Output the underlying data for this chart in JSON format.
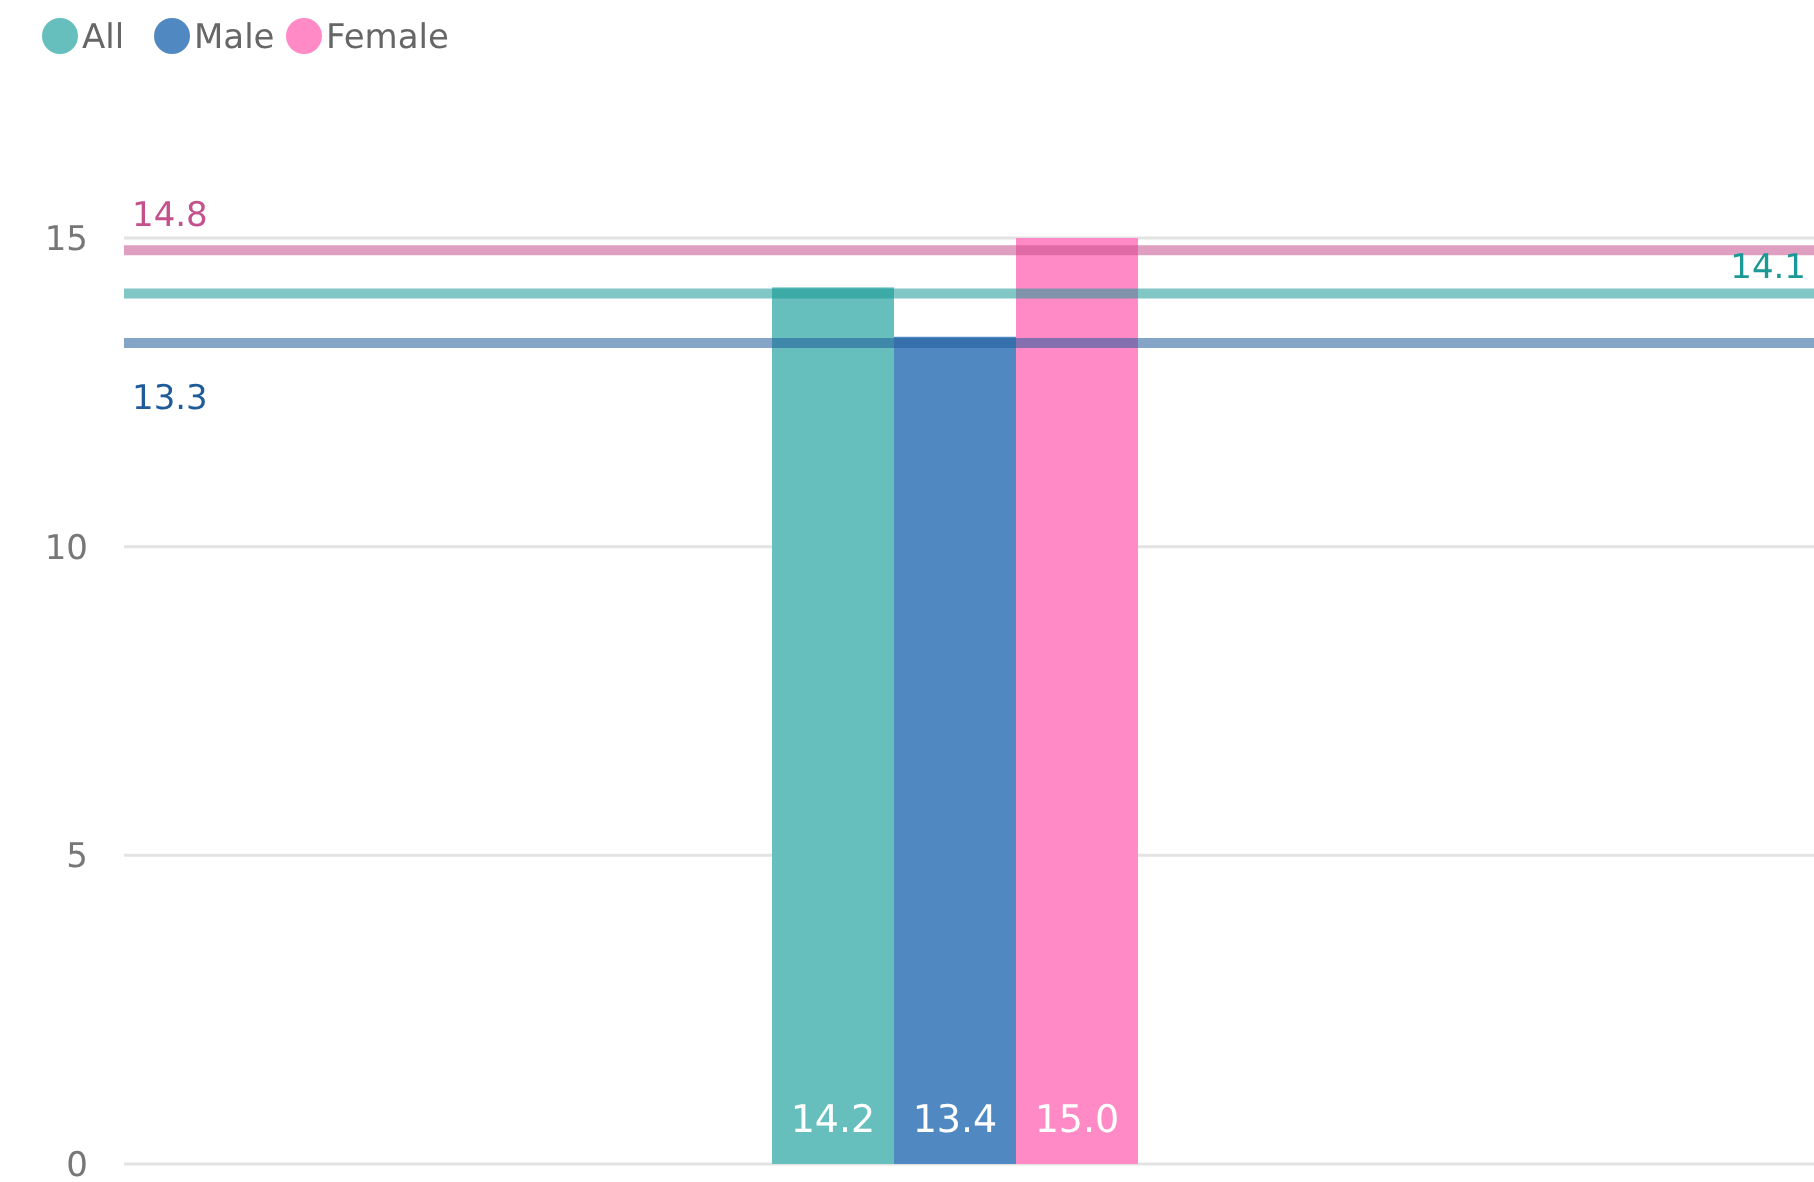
{
  "chart_data": {
    "type": "bar",
    "categories": [
      null
    ],
    "series": [
      {
        "name": "All",
        "color": "#66bfbd",
        "values": [
          14.2
        ],
        "value_labels": [
          "14.2"
        ]
      },
      {
        "name": "Male",
        "color": "#5089c1",
        "values": [
          13.4
        ],
        "value_labels": [
          "13.4"
        ]
      },
      {
        "name": "Female",
        "color": "#ff8ac6",
        "values": [
          15.0
        ],
        "value_labels": [
          "15.0"
        ]
      }
    ],
    "ylim": [
      0,
      15
    ],
    "yticks": [
      0,
      5,
      10,
      15
    ],
    "grid": "y",
    "legend": "top left",
    "ref_lines": [
      {
        "axis": "y",
        "value": 14.8,
        "label": "14.8",
        "color": "#c4508c"
      },
      {
        "axis": "y",
        "value": 13.3,
        "label": "13.3",
        "color": "#1f5b9b"
      },
      {
        "axis": "y",
        "value": 14.1,
        "label": "14.1",
        "color": "#1a9996"
      }
    ]
  }
}
